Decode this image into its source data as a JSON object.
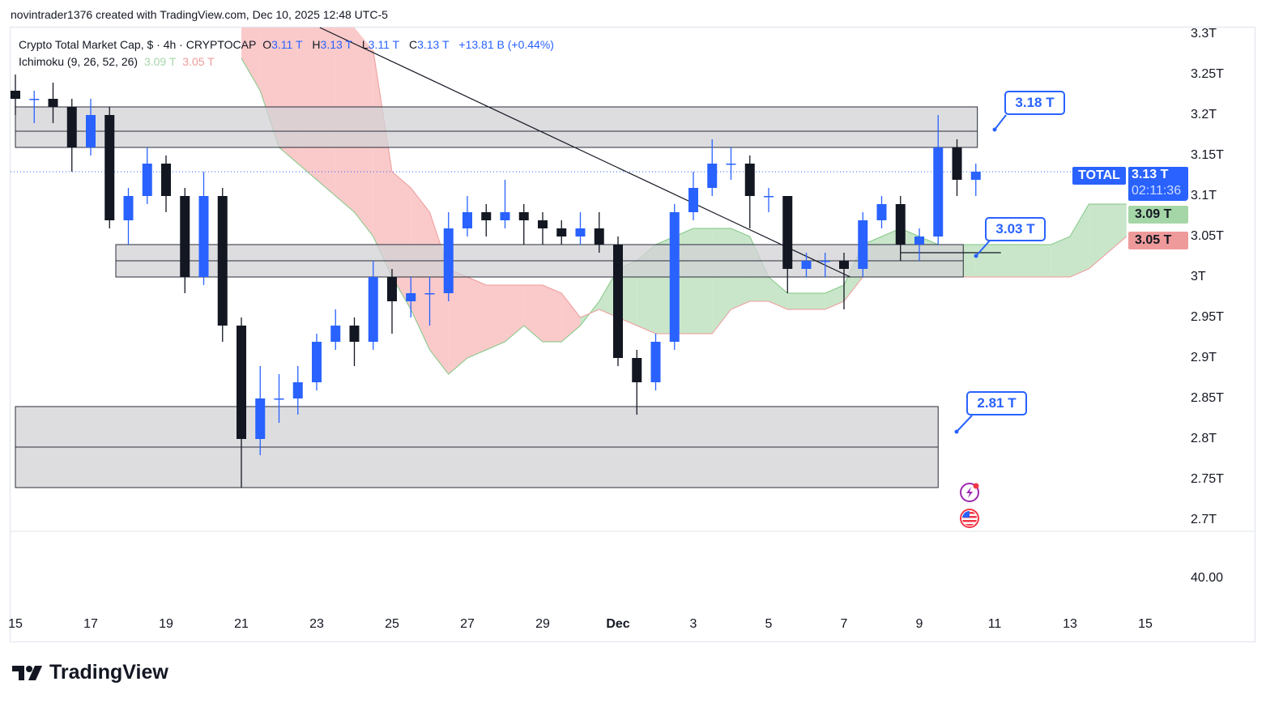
{
  "credit": "novintrader1376 created with TradingView.com, Dec 10, 2025 12:48 UTC-5",
  "legend": {
    "symbol": "Crypto Total Market Cap, $ · 4h · CRYPTOCAP",
    "o_label": "O",
    "o": "3.11 T",
    "h_label": "H",
    "h": "3.13 T",
    "l_label": "L",
    "l": "3.11 T",
    "c_label": "C",
    "c": "3.13 T",
    "change": "+13.81 B (+0.44%)",
    "indicator": "Ichimoku (9, 26, 52, 26)",
    "ind_a": "3.09 T",
    "ind_b": "3.05 T"
  },
  "price_tags": {
    "symbol": "TOTAL",
    "last": "3.13 T",
    "countdown": "02:11:36",
    "span_a": "3.09 T",
    "span_b": "3.05 T"
  },
  "callouts": [
    "3.18 T",
    "3.03 T",
    "2.81 T"
  ],
  "lower_pane_label": "40.00",
  "branding": "TradingView",
  "icons": [
    "lightning-event-icon",
    "us-flag-icon"
  ],
  "colors": {
    "up": "#2962ff",
    "down": "#131722",
    "cloud_bull": "#a5d6a7",
    "cloud_bear": "#f7a6a6",
    "zone": "#d1d1d6",
    "accent": "#2962ff"
  },
  "chart_data": {
    "type": "candlestick",
    "symbol": "TOTAL",
    "interval": "4h",
    "y_ticks": [
      "3.3T",
      "3.25T",
      "3.2T",
      "3.15T",
      "3.1T",
      "3.05T",
      "3T",
      "2.95T",
      "2.9T",
      "2.85T",
      "2.8T",
      "2.75T",
      "2.7T"
    ],
    "x_ticks": [
      "15",
      "17",
      "19",
      "21",
      "23",
      "25",
      "27",
      "29",
      "Dec",
      "3",
      "5",
      "7",
      "9",
      "11",
      "13",
      "15"
    ],
    "ylim": [
      2.68,
      3.31
    ],
    "xlim": [
      "Nov 15 00:00",
      "Dec 16 00:00"
    ],
    "candles": [
      [
        "Nov 15 00:00",
        3.23,
        3.25,
        3.2,
        3.22
      ],
      [
        "Nov 15 12:00",
        3.22,
        3.23,
        3.19,
        3.22
      ],
      [
        "Nov 16 00:00",
        3.22,
        3.24,
        3.19,
        3.21
      ],
      [
        "Nov 16 12:00",
        3.21,
        3.22,
        3.13,
        3.16
      ],
      [
        "Nov 17 00:00",
        3.16,
        3.22,
        3.15,
        3.2
      ],
      [
        "Nov 17 12:00",
        3.2,
        3.21,
        3.06,
        3.07
      ],
      [
        "Nov 18 00:00",
        3.07,
        3.11,
        3.04,
        3.1
      ],
      [
        "Nov 18 12:00",
        3.1,
        3.16,
        3.09,
        3.14
      ],
      [
        "Nov 19 00:00",
        3.14,
        3.15,
        3.08,
        3.1
      ],
      [
        "Nov 19 12:00",
        3.1,
        3.11,
        2.98,
        3.0
      ],
      [
        "Nov 20 00:00",
        3.0,
        3.13,
        2.99,
        3.1
      ],
      [
        "Nov 20 12:00",
        3.1,
        3.11,
        2.92,
        2.94
      ],
      [
        "Nov 21 00:00",
        2.94,
        2.95,
        2.74,
        2.8
      ],
      [
        "Nov 21 12:00",
        2.8,
        2.89,
        2.78,
        2.85
      ],
      [
        "Nov 22 00:00",
        2.85,
        2.88,
        2.82,
        2.85
      ],
      [
        "Nov 22 12:00",
        2.85,
        2.89,
        2.83,
        2.87
      ],
      [
        "Nov 23 00:00",
        2.87,
        2.93,
        2.86,
        2.92
      ],
      [
        "Nov 23 12:00",
        2.92,
        2.96,
        2.91,
        2.94
      ],
      [
        "Nov 24 00:00",
        2.94,
        2.95,
        2.89,
        2.92
      ],
      [
        "Nov 24 12:00",
        2.92,
        3.02,
        2.91,
        3.0
      ],
      [
        "Nov 25 00:00",
        3.0,
        3.01,
        2.93,
        2.97
      ],
      [
        "Nov 25 12:00",
        2.97,
        3.0,
        2.95,
        2.98
      ],
      [
        "Nov 26 00:00",
        2.98,
        3.0,
        2.94,
        2.98
      ],
      [
        "Nov 26 12:00",
        2.98,
        3.08,
        2.97,
        3.06
      ],
      [
        "Nov 27 00:00",
        3.06,
        3.1,
        3.05,
        3.08
      ],
      [
        "Nov 27 12:00",
        3.08,
        3.09,
        3.05,
        3.07
      ],
      [
        "Nov 28 00:00",
        3.07,
        3.12,
        3.06,
        3.08
      ],
      [
        "Nov 28 12:00",
        3.08,
        3.09,
        3.04,
        3.07
      ],
      [
        "Nov 29 00:00",
        3.07,
        3.08,
        3.04,
        3.06
      ],
      [
        "Nov 29 12:00",
        3.06,
        3.07,
        3.04,
        3.05
      ],
      [
        "Nov 30 00:00",
        3.05,
        3.08,
        3.04,
        3.06
      ],
      [
        "Nov 30 12:00",
        3.06,
        3.08,
        3.03,
        3.04
      ],
      [
        "Dec 1 00:00",
        3.04,
        3.05,
        2.89,
        2.9
      ],
      [
        "Dec 1 12:00",
        2.9,
        2.91,
        2.83,
        2.87
      ],
      [
        "Dec 2 00:00",
        2.87,
        2.93,
        2.86,
        2.92
      ],
      [
        "Dec 2 12:00",
        2.92,
        3.09,
        2.91,
        3.08
      ],
      [
        "Dec 3 00:00",
        3.08,
        3.13,
        3.07,
        3.11
      ],
      [
        "Dec 3 12:00",
        3.11,
        3.17,
        3.1,
        3.14
      ],
      [
        "Dec 4 00:00",
        3.14,
        3.16,
        3.12,
        3.14
      ],
      [
        "Dec 4 12:00",
        3.14,
        3.15,
        3.06,
        3.1
      ],
      [
        "Dec 5 00:00",
        3.1,
        3.11,
        3.08,
        3.1
      ],
      [
        "Dec 5 12:00",
        3.1,
        3.1,
        2.98,
        3.01
      ],
      [
        "Dec 6 00:00",
        3.01,
        3.03,
        3.0,
        3.02
      ],
      [
        "Dec 6 12:00",
        3.02,
        3.03,
        3.0,
        3.02
      ],
      [
        "Dec 7 00:00",
        3.02,
        3.03,
        2.96,
        3.01
      ],
      [
        "Dec 7 12:00",
        3.01,
        3.08,
        3.0,
        3.07
      ],
      [
        "Dec 8 00:00",
        3.07,
        3.1,
        3.06,
        3.09
      ],
      [
        "Dec 8 12:00",
        3.09,
        3.1,
        3.02,
        3.04
      ],
      [
        "Dec 9 00:00",
        3.04,
        3.06,
        3.02,
        3.05
      ],
      [
        "Dec 9 12:00",
        3.05,
        3.2,
        3.04,
        3.16
      ],
      [
        "Dec 10 00:00",
        3.16,
        3.17,
        3.1,
        3.12
      ],
      [
        "Dec 10 12:00",
        3.12,
        3.14,
        3.1,
        3.13
      ]
    ],
    "ichimoku_cloud": {
      "times": [
        "Nov 21 00:00",
        "Nov 21 12:00",
        "Nov 22 00:00",
        "Nov 22 12:00",
        "Nov 23 00:00",
        "Nov 23 12:00",
        "Nov 24 00:00",
        "Nov 24 12:00",
        "Nov 25 00:00",
        "Nov 25 12:00",
        "Nov 26 00:00",
        "Nov 26 12:00",
        "Nov 27 00:00",
        "Nov 27 12:00",
        "Nov 28 00:00",
        "Nov 28 12:00",
        "Nov 29 00:00",
        "Nov 29 12:00",
        "Nov 30 00:00",
        "Nov 30 12:00",
        "Dec 1 00:00",
        "Dec 1 12:00",
        "Dec 2 00:00",
        "Dec 2 12:00",
        "Dec 3 00:00",
        "Dec 3 12:00",
        "Dec 4 00:00",
        "Dec 4 12:00",
        "Dec 5 00:00",
        "Dec 5 12:00",
        "Dec 6 00:00",
        "Dec 6 12:00",
        "Dec 7 00:00",
        "Dec 7 12:00",
        "Dec 8 00:00",
        "Dec 8 12:00",
        "Dec 9 00:00",
        "Dec 9 12:00",
        "Dec 10 00:00",
        "Dec 10 12:00",
        "Dec 11 00:00",
        "Dec 11 12:00",
        "Dec 12 00:00",
        "Dec 12 12:00",
        "Dec 13 00:00",
        "Dec 13 12:00",
        "Dec 14 00:00",
        "Dec 14 12:00"
      ],
      "span_a": [
        3.27,
        3.23,
        3.16,
        3.14,
        3.12,
        3.1,
        3.08,
        3.05,
        3.0,
        2.96,
        2.91,
        2.88,
        2.9,
        2.91,
        2.92,
        2.94,
        2.92,
        2.92,
        2.94,
        2.97,
        3.01,
        3.02,
        3.04,
        3.05,
        3.06,
        3.06,
        3.06,
        3.05,
        3.0,
        2.98,
        2.98,
        2.98,
        2.99,
        3.04,
        3.05,
        3.06,
        3.05,
        3.04,
        3.04,
        3.04,
        3.04,
        3.04,
        3.04,
        3.04,
        3.05,
        3.09,
        3.09,
        3.09
      ],
      "span_b": [
        null,
        null,
        null,
        null,
        null,
        null,
        null,
        3.28,
        3.13,
        3.11,
        3.08,
        3.01,
        3.0,
        2.99,
        2.99,
        2.99,
        2.99,
        2.98,
        2.95,
        2.96,
        2.95,
        2.94,
        2.93,
        2.93,
        2.93,
        2.93,
        2.96,
        2.97,
        2.97,
        2.96,
        2.96,
        2.96,
        2.97,
        3.0,
        3.0,
        3.0,
        3.0,
        3.0,
        3.0,
        3.0,
        3.0,
        3.0,
        3.0,
        3.0,
        3.0,
        3.01,
        3.03,
        3.05
      ]
    },
    "zones": [
      {
        "from": "Nov 15 00:00",
        "to": "Dec 10 13:00",
        "top": 3.21,
        "mid": 3.18,
        "bottom": 3.16
      },
      {
        "from": "Nov 17 16:00",
        "to": "Dec 10 04:00",
        "top": 3.04,
        "mid": 3.02,
        "bottom": 3.0
      },
      {
        "from": "Nov 15 00:00",
        "to": "Dec 9 12:00",
        "top": 2.84,
        "mid": 2.79,
        "bottom": 2.74
      }
    ],
    "trendline": {
      "from": [
        "Nov 23 02:00",
        3.31
      ],
      "to": [
        "Dec 7 04:00",
        3.0
      ]
    },
    "level_line": {
      "from": "Dec 8 12:00",
      "to": "Dec 11 04:00",
      "price": 3.03
    },
    "last_price": 3.13
  }
}
